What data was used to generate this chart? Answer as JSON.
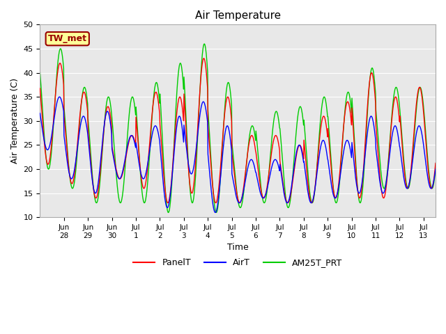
{
  "title": "Air Temperature",
  "xlabel": "Time",
  "ylabel": "Air Temperature (C)",
  "ylim": [
    10,
    50
  ],
  "background_color": "#e8e8e8",
  "annotation_label": "TW_met",
  "annotation_bg": "#ffff99",
  "annotation_border": "#990000",
  "legend_labels": [
    "PanelT",
    "AirT",
    "AM25T_PRT"
  ],
  "line_colors": [
    "#ff0000",
    "#0000ff",
    "#00cc00"
  ],
  "xtick_positions": [
    1,
    2,
    3,
    4,
    5,
    6,
    7,
    8,
    9,
    10,
    11,
    12,
    13,
    14,
    15,
    16
  ],
  "xtick_labels": [
    "Jun\n28",
    "Jun\n29",
    "Jun\n30",
    "Jul\n1",
    "Jul\n2",
    "Jul\n3",
    "Jul\n4",
    "Jul\n5",
    "Jul\n6",
    "Jul\n7",
    "Jul\n8",
    "Jul\n9",
    "Jul\n10",
    "Jul\n11",
    "Jul\n12",
    "Jul\n13"
  ],
  "xlim": [
    0.0,
    16.5
  ],
  "num_days": 16.5,
  "points_per_day": 72,
  "panel_peaks": [
    42,
    36,
    33,
    27,
    36,
    35,
    43,
    35,
    27,
    27,
    25,
    31,
    34,
    40,
    35,
    37
  ],
  "panel_troughs": [
    21,
    17,
    14,
    18,
    16,
    13,
    15,
    13,
    13,
    14,
    13,
    13,
    14,
    14,
    14,
    16
  ],
  "air_peaks": [
    35,
    31,
    32,
    27,
    29,
    31,
    34,
    29,
    22,
    22,
    25,
    26,
    26,
    31,
    29,
    29
  ],
  "air_troughs": [
    24,
    18,
    15,
    18,
    18,
    12,
    19,
    11,
    13,
    14,
    13,
    13,
    14,
    15,
    15,
    16
  ],
  "am_peaks": [
    45,
    37,
    35,
    35,
    38,
    42,
    46,
    38,
    29,
    32,
    33,
    35,
    36,
    41,
    37,
    37
  ],
  "am_troughs": [
    20,
    16,
    13,
    13,
    13,
    11,
    13,
    11,
    12,
    13,
    12,
    13,
    13,
    13,
    16,
    16
  ],
  "yticks": [
    10,
    15,
    20,
    25,
    30,
    35,
    40,
    45,
    50
  ],
  "grid_color": "#ffffff",
  "spine_color": "#aaaaaa"
}
